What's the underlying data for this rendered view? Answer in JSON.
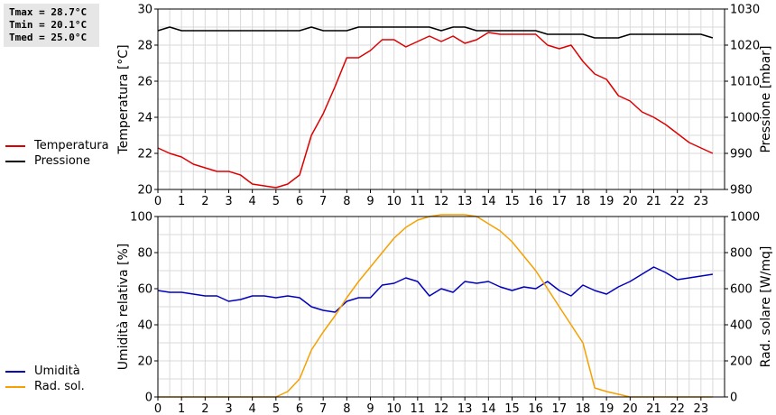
{
  "stats": {
    "tmax": "Tmax = 28.7°C",
    "tmin": "Tmin = 20.1°C",
    "tmed": "Tmed = 25.0°C"
  },
  "colors": {
    "temperature": "#dd0000",
    "pressure": "#000000",
    "humidity": "#0000bb",
    "solar": "#f5a000",
    "grid": "#d9d9d9"
  },
  "legend_top": [
    {
      "label": "Temperatura",
      "color": "#dd0000"
    },
    {
      "label": "Pressione",
      "color": "#000000"
    }
  ],
  "legend_bottom": [
    {
      "label": "Umidità",
      "color": "#0000bb"
    },
    {
      "label": "Rad. sol.",
      "color": "#f5a000"
    }
  ],
  "chart_data": [
    {
      "type": "line",
      "xlim": [
        0,
        24
      ],
      "xticks": [
        0,
        1,
        2,
        3,
        4,
        5,
        6,
        7,
        8,
        9,
        10,
        11,
        12,
        13,
        14,
        15,
        16,
        17,
        18,
        19,
        20,
        21,
        22,
        23
      ],
      "grid": true,
      "y_left": {
        "label": "Temperatura [°C]",
        "lim": [
          20,
          30
        ],
        "ticks": [
          20,
          22,
          24,
          26,
          28,
          30
        ]
      },
      "y_right": {
        "label": "Pressione [mbar]",
        "lim": [
          980,
          1030
        ],
        "ticks": [
          980,
          990,
          1000,
          1010,
          1020,
          1030
        ]
      },
      "series": [
        {
          "name": "Temperatura",
          "axis": "left",
          "x": [
            0,
            0.5,
            1,
            1.5,
            2,
            2.5,
            3,
            3.5,
            4,
            4.5,
            5,
            5.5,
            6,
            6.5,
            7,
            7.5,
            8,
            8.5,
            9,
            9.5,
            10,
            10.5,
            11,
            11.5,
            12,
            12.5,
            13,
            13.5,
            14,
            14.5,
            15,
            15.5,
            16,
            16.5,
            17,
            17.5,
            18,
            18.5,
            19,
            19.5,
            20,
            20.5,
            21,
            21.5,
            22,
            22.5,
            23,
            23.5
          ],
          "y": [
            22.3,
            22.0,
            21.8,
            21.4,
            21.2,
            21.0,
            21.0,
            20.8,
            20.3,
            20.2,
            20.1,
            20.3,
            20.8,
            23.0,
            24.2,
            25.7,
            27.3,
            27.3,
            27.7,
            28.3,
            28.3,
            27.9,
            28.2,
            28.5,
            28.2,
            28.5,
            28.1,
            28.3,
            28.7,
            28.6,
            28.6,
            28.6,
            28.6,
            28.0,
            27.8,
            28.0,
            27.1,
            26.4,
            26.1,
            25.2,
            24.9,
            24.3,
            24.0,
            23.6,
            23.1,
            22.6,
            22.3,
            22.0
          ]
        },
        {
          "name": "Pressione",
          "axis": "right",
          "x": [
            0,
            0.5,
            1,
            1.5,
            2,
            2.5,
            3,
            3.5,
            4,
            4.5,
            5,
            5.5,
            6,
            6.5,
            7,
            7.5,
            8,
            8.5,
            9,
            9.5,
            10,
            10.5,
            11,
            11.5,
            12,
            12.5,
            13,
            13.5,
            14,
            14.5,
            15,
            15.5,
            16,
            16.5,
            17,
            17.5,
            18,
            18.5,
            19,
            19.5,
            20,
            20.5,
            21,
            21.5,
            22,
            22.5,
            23,
            23.5
          ],
          "y": [
            1024,
            1025,
            1024,
            1024,
            1024,
            1024,
            1024,
            1024,
            1024,
            1024,
            1024,
            1024,
            1024,
            1025,
            1024,
            1024,
            1024,
            1025,
            1025,
            1025,
            1025,
            1025,
            1025,
            1025,
            1024,
            1025,
            1025,
            1024,
            1024,
            1024,
            1024,
            1024,
            1024,
            1023,
            1023,
            1023,
            1023,
            1022,
            1022,
            1022,
            1023,
            1023,
            1023,
            1023,
            1023,
            1023,
            1023,
            1022
          ]
        }
      ]
    },
    {
      "type": "line",
      "xlim": [
        0,
        24
      ],
      "xticks": [
        0,
        1,
        2,
        3,
        4,
        5,
        6,
        7,
        8,
        9,
        10,
        11,
        12,
        13,
        14,
        15,
        16,
        17,
        18,
        19,
        20,
        21,
        22,
        23
      ],
      "grid": true,
      "y_left": {
        "label": "Umidità relativa [%]",
        "lim": [
          0,
          100
        ],
        "ticks": [
          0,
          20,
          40,
          60,
          80,
          100
        ]
      },
      "y_right": {
        "label": "Rad. solare [W/mq]",
        "lim": [
          0,
          1000
        ],
        "ticks": [
          0,
          200,
          400,
          600,
          800,
          1000
        ]
      },
      "series": [
        {
          "name": "Umidità",
          "axis": "left",
          "x": [
            0,
            0.5,
            1,
            1.5,
            2,
            2.5,
            3,
            3.5,
            4,
            4.5,
            5,
            5.5,
            6,
            6.5,
            7,
            7.5,
            8,
            8.5,
            9,
            9.5,
            10,
            10.5,
            11,
            11.5,
            12,
            12.5,
            13,
            13.5,
            14,
            14.5,
            15,
            15.5,
            16,
            16.5,
            17,
            17.5,
            18,
            18.5,
            19,
            19.5,
            20,
            20.5,
            21,
            21.5,
            22,
            22.5,
            23,
            23.5
          ],
          "y": [
            59,
            58,
            58,
            57,
            56,
            56,
            53,
            54,
            56,
            56,
            55,
            56,
            55,
            50,
            48,
            47,
            53,
            55,
            55,
            62,
            63,
            66,
            64,
            56,
            60,
            58,
            64,
            63,
            64,
            61,
            59,
            61,
            60,
            64,
            59,
            56,
            62,
            59,
            57,
            61,
            64,
            68,
            72,
            69,
            65,
            66,
            67,
            68
          ]
        },
        {
          "name": "Rad. sol.",
          "axis": "right",
          "x": [
            0,
            1,
            2,
            3,
            4,
            5,
            5.5,
            6,
            6.5,
            7,
            7.5,
            8,
            8.5,
            9,
            9.5,
            10,
            10.5,
            11,
            11.5,
            12,
            12.5,
            13,
            13.5,
            14,
            14.5,
            15,
            15.5,
            16,
            16.5,
            17,
            17.5,
            18,
            18.5,
            19,
            19.5,
            20,
            21,
            22,
            23,
            23.5
          ],
          "y": [
            0,
            0,
            0,
            0,
            0,
            0,
            30,
            100,
            260,
            360,
            450,
            550,
            640,
            720,
            800,
            880,
            940,
            980,
            1000,
            1010,
            1010,
            1010,
            1000,
            960,
            920,
            860,
            780,
            700,
            600,
            500,
            400,
            300,
            50,
            30,
            15,
            0,
            0,
            0,
            0,
            0
          ]
        }
      ]
    }
  ]
}
